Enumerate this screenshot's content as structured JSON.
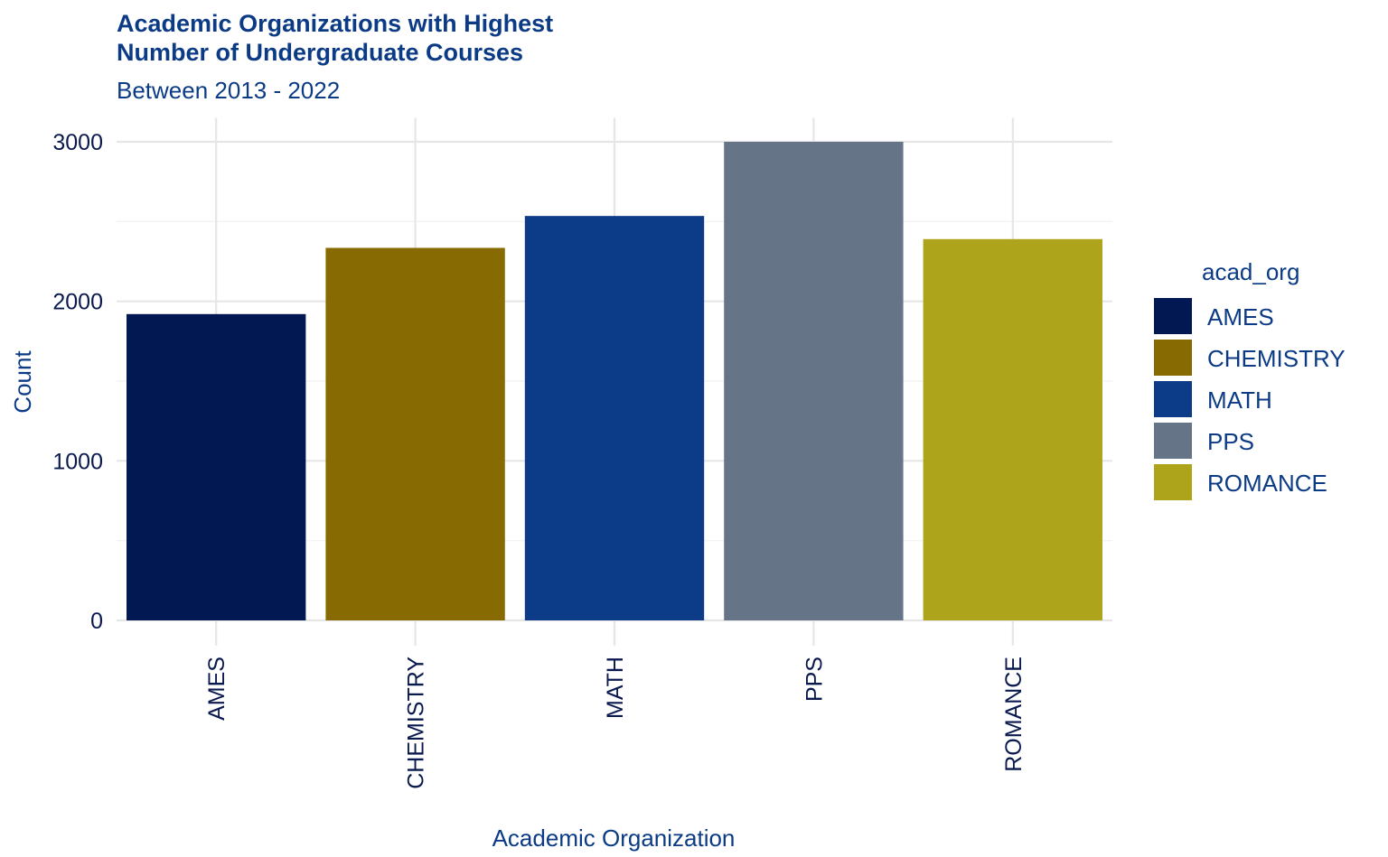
{
  "chart_data": {
    "type": "bar",
    "title_lines": [
      "Academic Organizations with Highest",
      "Number of Undergraduate Courses"
    ],
    "subtitle": "Between 2013 - 2022",
    "xlabel": "Academic Organization",
    "ylabel": "Count",
    "categories": [
      "AMES",
      "CHEMISTRY",
      "MATH",
      "PPS",
      "ROMANCE"
    ],
    "values": [
      1920,
      2335,
      2535,
      3000,
      2390
    ],
    "colors": [
      "#021852",
      "#876a02",
      "#0c3b87",
      "#657587",
      "#aea41b"
    ],
    "yticks": [
      0,
      1000,
      2000,
      3000
    ],
    "ylim": [
      0,
      3150
    ],
    "grid": true,
    "legend": {
      "title": "acad_org",
      "position": "right",
      "entries": [
        "AMES",
        "CHEMISTRY",
        "MATH",
        "PPS",
        "ROMANCE"
      ]
    }
  }
}
